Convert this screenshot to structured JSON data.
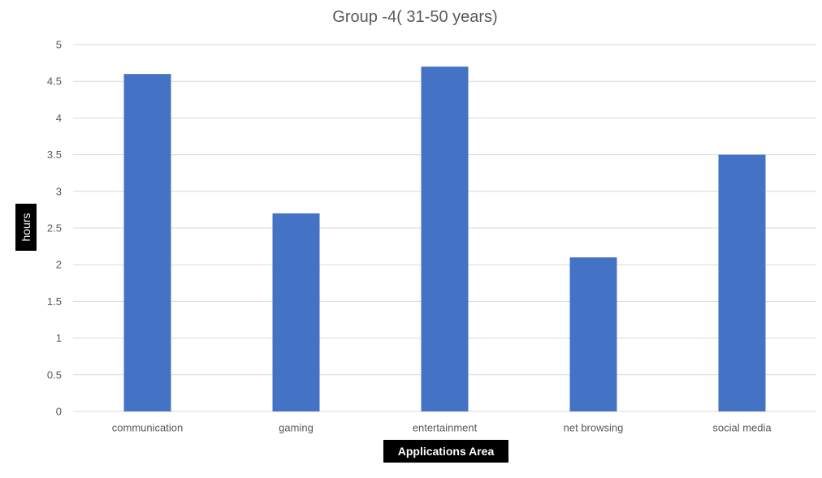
{
  "chart_data": {
    "type": "bar",
    "title": "Group -4( 31-50 years)",
    "xlabel": "Applications Area",
    "ylabel": "hours",
    "categories": [
      "communication",
      "gaming",
      "entertainment",
      "net browsing",
      "social media"
    ],
    "values": [
      4.6,
      2.7,
      4.7,
      2.1,
      3.5
    ],
    "ylim": [
      0,
      5
    ],
    "yticks": [
      "0",
      "0.5",
      "1",
      "1.5",
      "2",
      "2.5",
      "3",
      "3.5",
      "4",
      "4.5",
      "5"
    ],
    "grid": true,
    "legend": "none",
    "bar_color": "#4472C4",
    "grid_color": "#d9d9d9",
    "label_box_color": "#000000"
  }
}
